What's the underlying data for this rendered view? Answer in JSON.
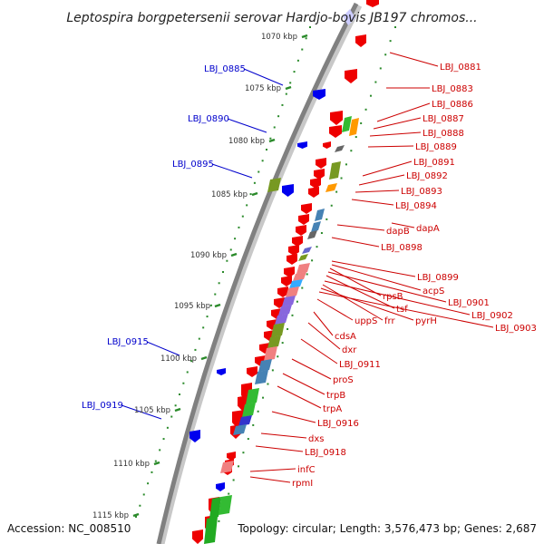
{
  "title": "Leptospira borgpetersenii serovar Hardjo-bovis JB197 chromos...",
  "footer": {
    "accession": "Accession: NC_008510",
    "topology": "Topology: circular; Length: 3,576,473 bp; Genes: 2,687"
  },
  "scale": {
    "ticks": [
      "1070 kbp",
      "1075 kbp",
      "1080 kbp",
      "1085 kbp",
      "1090 kbp",
      "1095 kbp",
      "1100 kbp",
      "1105 kbp",
      "1110 kbp",
      "1115 kbp"
    ]
  },
  "left_labels": [
    "LBJ_0885",
    "LBJ_0890",
    "LBJ_0895",
    "LBJ_0915",
    "LBJ_0919"
  ],
  "right_labels": [
    "LBJ_0881",
    "LBJ_0883",
    "LBJ_0886",
    "LBJ_0887",
    "LBJ_0888",
    "LBJ_0889",
    "LBJ_0891",
    "LBJ_0892",
    "LBJ_0893",
    "LBJ_0894",
    "dapA",
    "dapB",
    "LBJ_0898",
    "LBJ_0899",
    "acpS",
    "rpsB",
    "LBJ_0901",
    "tsf",
    "LBJ_0902",
    "frr",
    "pyrH",
    "LBJ_0903",
    "uppS",
    "cdsA",
    "dxr",
    "LBJ_0911",
    "proS",
    "trpB",
    "trpA",
    "LBJ_0916",
    "dxs",
    "LBJ_0918",
    "infC",
    "rpmI"
  ],
  "colors": {
    "backbone": "#808080",
    "forward_gene": "#ee0000",
    "reverse_gene": "#0000ee",
    "dots": "#2a8a2a",
    "label_red": "#cc0000",
    "label_blue": "#0000cc"
  }
}
